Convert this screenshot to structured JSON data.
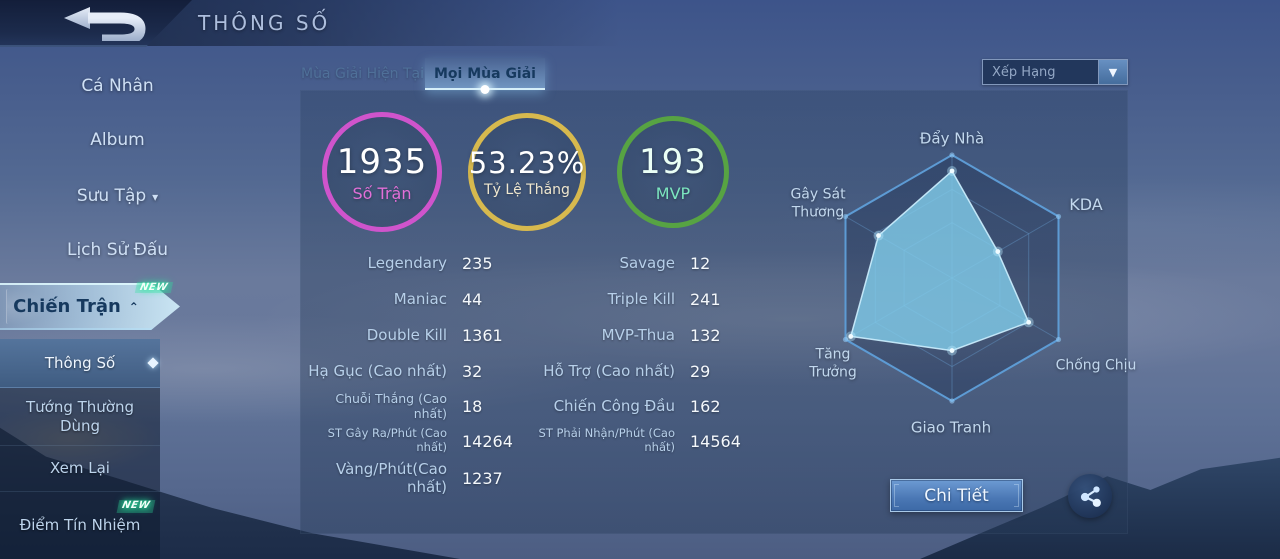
{
  "header": {
    "title": "THÔNG SỐ"
  },
  "sidebar": {
    "items": [
      {
        "label": "Cá Nhân"
      },
      {
        "label": "Album"
      },
      {
        "label": "Sưu Tập",
        "chevron": "▾"
      },
      {
        "label": "Lịch Sử Đấu"
      },
      {
        "label": "Chiến Trận",
        "chevron": "⌃",
        "badge": "NEW"
      }
    ],
    "submenu": [
      {
        "label": "Thông Số"
      },
      {
        "label": "Tướng Thường Dùng"
      },
      {
        "label": "Xem Lại"
      },
      {
        "label": "Điểm Tín Nhiệm",
        "badge": "NEW"
      }
    ]
  },
  "tabs": [
    {
      "label": "Mùa Giải Hiện Tại",
      "active": false
    },
    {
      "label": "Mọi Mùa Giải",
      "active": true
    }
  ],
  "filter": {
    "value": "Xếp Hạng",
    "chevron": "▼"
  },
  "summary": [
    {
      "value": "1935",
      "label": "Số Trận",
      "ring": "#cf54cc",
      "label_color": "#e26fd8"
    },
    {
      "value": "53.23%",
      "label": "Tỷ Lệ Thắng",
      "ring": "#d7b94e",
      "label_color": "#efe7cf"
    },
    {
      "value": "193",
      "label": "MVP",
      "ring": "#57a343",
      "label_color": "#7ce6bf"
    }
  ],
  "stats": {
    "left": [
      {
        "label": "Legendary",
        "value": "235"
      },
      {
        "label": "Maniac",
        "value": "44"
      },
      {
        "label": "Double Kill",
        "value": "1361"
      },
      {
        "label": "Hạ Gục (Cao nhất)",
        "value": "32"
      },
      {
        "label": "Chuỗi Thắng (Cao nhất)",
        "value": "18"
      },
      {
        "label": "ST Gây Ra/Phút (Cao nhất)",
        "value": "14264"
      },
      {
        "label": "Vàng/Phút(Cao nhất)",
        "value": "1237"
      }
    ],
    "right": [
      {
        "label": "Savage",
        "value": "12"
      },
      {
        "label": "Triple Kill",
        "value": "241"
      },
      {
        "label": "MVP-Thua",
        "value": "132"
      },
      {
        "label": "Hỗ Trợ (Cao nhất)",
        "value": "29"
      },
      {
        "label": "Chiến Công Đầu",
        "value": "162"
      },
      {
        "label": "ST Phải Nhận/Phút (Cao nhất)",
        "value": "14564"
      }
    ]
  },
  "chart_data": {
    "type": "radar",
    "axes": [
      "Đẩy Nhà",
      "KDA",
      "Chống Chịu",
      "Giao Tranh",
      "Tăng Trưởng",
      "Gây Sát Thương"
    ],
    "values": [
      0.87,
      0.43,
      0.72,
      0.59,
      0.95,
      0.69
    ],
    "value_range": [
      0,
      1
    ],
    "grid_levels": [
      1,
      0.72,
      0.45
    ],
    "legend": "none",
    "fill_color": "rgba(130,205,235,0.80)",
    "stroke_color": "rgba(205,240,255,0.9)",
    "grid_outer_color": "#5d9bd4",
    "grid_inner_color": "rgba(100,150,200,0.45)"
  },
  "actions": {
    "detail": "Chi Tiết"
  }
}
